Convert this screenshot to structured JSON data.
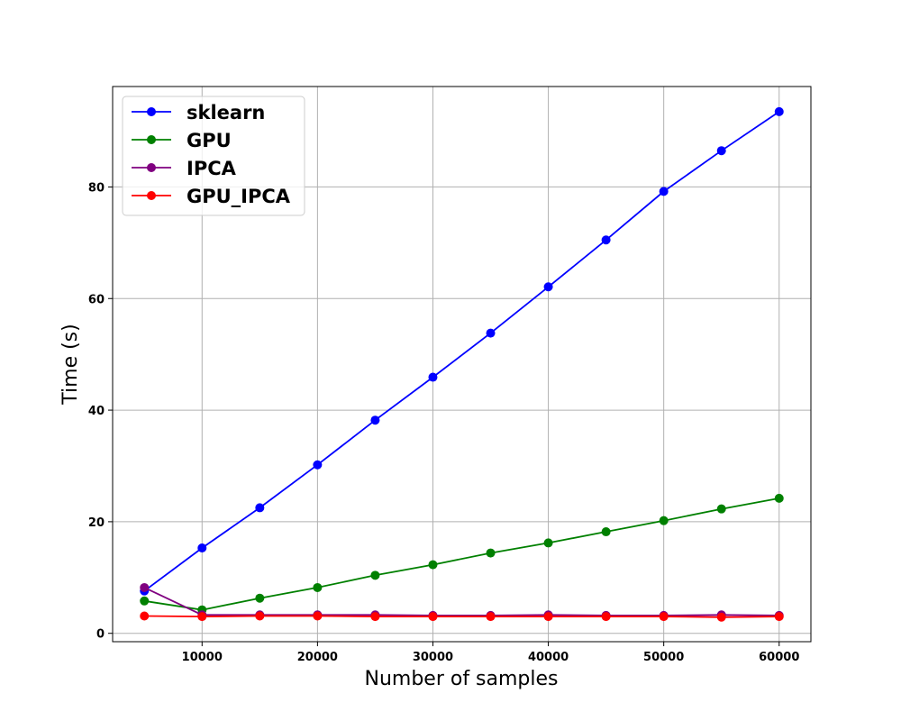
{
  "chart_data": {
    "type": "line",
    "title": "",
    "xlabel": "Number of samples",
    "ylabel": "Time (s)",
    "xlim": [
      2250,
      62750
    ],
    "ylim": [
      -1.5,
      98
    ],
    "xticks": [
      10000,
      20000,
      30000,
      40000,
      50000,
      60000
    ],
    "yticks": [
      0,
      20,
      40,
      60,
      80
    ],
    "grid": true,
    "legend_position": "upper left",
    "x": [
      5000,
      10000,
      15000,
      20000,
      25000,
      30000,
      35000,
      40000,
      45000,
      50000,
      55000,
      60000
    ],
    "series": [
      {
        "name": "sklearn",
        "color": "#0000ff",
        "values": [
          7.6,
          15.3,
          22.5,
          30.2,
          38.2,
          45.9,
          53.8,
          62.1,
          70.5,
          79.2,
          86.5,
          93.5
        ]
      },
      {
        "name": "GPU",
        "color": "#008000",
        "values": [
          5.8,
          4.2,
          6.3,
          8.2,
          10.4,
          12.3,
          14.4,
          16.2,
          18.2,
          20.2,
          22.3,
          24.2
        ]
      },
      {
        "name": "IPCA",
        "color": "#800080",
        "values": [
          8.2,
          3.3,
          3.3,
          3.3,
          3.3,
          3.2,
          3.2,
          3.3,
          3.2,
          3.2,
          3.3,
          3.2
        ]
      },
      {
        "name": "GPU_IPCA",
        "color": "#ff0000",
        "values": [
          3.1,
          3.0,
          3.1,
          3.1,
          3.0,
          3.0,
          3.0,
          3.0,
          3.0,
          3.0,
          2.9,
          3.0
        ]
      }
    ]
  }
}
